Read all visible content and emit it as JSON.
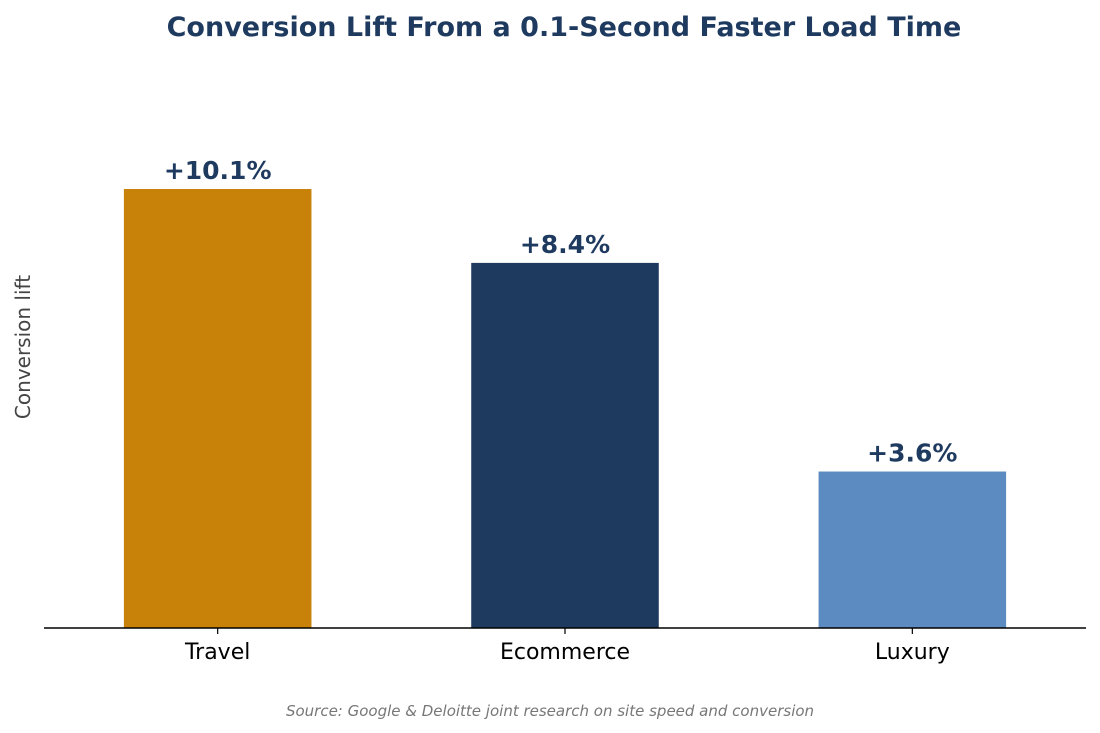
{
  "chart_data": {
    "type": "bar",
    "title": "Conversion Lift From a 0.1-Second Faster Load Time",
    "ylabel": "Conversion lift",
    "xlabel": "",
    "categories": [
      "Travel",
      "Ecommerce",
      "Luxury"
    ],
    "values": [
      10.1,
      8.4,
      3.6
    ],
    "value_labels": [
      "+10.1%",
      "+8.4%",
      "+3.6%"
    ],
    "bar_colors": [
      "#C8820A",
      "#1F3A5F",
      "#5B8BC1"
    ],
    "ylim": [
      0,
      12.7
    ],
    "grid": false,
    "legend": "none",
    "source": "Source: Google & Deloitte joint research on site speed and conversion"
  },
  "colors": {
    "title": "#1F3A5F",
    "value_labels": "#1F3A5F",
    "ylabel": "#444444",
    "tick_labels": "#000000",
    "axis": "#000000",
    "source": "#777777"
  }
}
